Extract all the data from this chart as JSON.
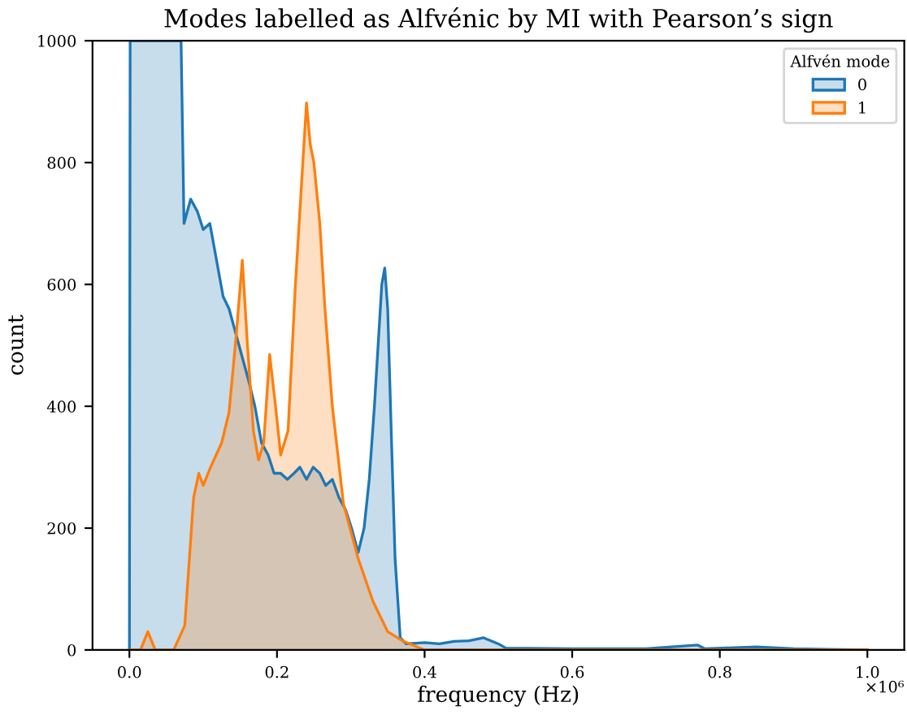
{
  "chart_data": {
    "type": "area",
    "title": "Modes labelled as Alfvénic by MI with Pearson’s sign",
    "xlabel": "frequency (Hz)",
    "ylabel": "count",
    "legend_title": "Alfvén mode",
    "legend": "top right",
    "grid": false,
    "annotations": [
      "×10⁶"
    ],
    "xlim": [
      -0.05,
      1.05
    ],
    "xticks": [
      {
        "value": 0,
        "label": "0.0"
      },
      0.2,
      0.4,
      0.6,
      0.8,
      {
        "value": 1,
        "label": "1.0"
      }
    ],
    "ylim": [
      0,
      1000
    ],
    "yticks": [
      0,
      200,
      400,
      600,
      800,
      1000
    ],
    "series": [
      {
        "name": "0",
        "color": "#1f77b4",
        "x": [
          0,
          0.001,
          0.07,
          0.074,
          0.083,
          0.092,
          0.1,
          0.109,
          0.118,
          0.127,
          0.135,
          0.144,
          0.153,
          0.162,
          0.17,
          0.179,
          0.188,
          0.196,
          0.205,
          0.214,
          0.223,
          0.231,
          0.24,
          0.249,
          0.258,
          0.266,
          0.275,
          0.284,
          0.293,
          0.301,
          0.31,
          0.318,
          0.325,
          0.332,
          0.338,
          0.342,
          0.346,
          0.35,
          0.355,
          0.36,
          0.367,
          0.375,
          0.4,
          0.42,
          0.44,
          0.46,
          0.48,
          0.5,
          0.51,
          0.6,
          0.7,
          0.77,
          0.78,
          0.85,
          0.9,
          1.0
        ],
        "values": [
          0,
          1000,
          1000,
          700,
          740,
          720,
          690,
          700,
          640,
          580,
          560,
          520,
          480,
          440,
          400,
          340,
          320,
          290,
          290,
          280,
          290,
          300,
          280,
          300,
          290,
          270,
          280,
          250,
          230,
          200,
          160,
          200,
          280,
          400,
          520,
          600,
          627,
          560,
          350,
          150,
          20,
          10,
          12,
          10,
          14,
          15,
          20,
          10,
          3,
          2,
          2,
          8,
          2,
          5,
          2,
          0
        ]
      },
      {
        "name": "1",
        "color": "#ff7f0e",
        "x": [
          0,
          0.015,
          0.025,
          0.035,
          0.06,
          0.075,
          0.087,
          0.094,
          0.1,
          0.11,
          0.125,
          0.135,
          0.145,
          0.153,
          0.16,
          0.168,
          0.175,
          0.182,
          0.19,
          0.198,
          0.205,
          0.215,
          0.225,
          0.235,
          0.24,
          0.245,
          0.25,
          0.258,
          0.265,
          0.275,
          0.29,
          0.31,
          0.33,
          0.35,
          0.37,
          0.4,
          1.0
        ],
        "values": [
          0,
          0,
          30,
          0,
          0,
          40,
          250,
          290,
          270,
          300,
          340,
          390,
          520,
          640,
          500,
          360,
          312,
          340,
          485,
          400,
          320,
          360,
          600,
          800,
          898,
          830,
          800,
          700,
          560,
          400,
          240,
          150,
          80,
          30,
          15,
          0,
          0
        ]
      }
    ]
  }
}
